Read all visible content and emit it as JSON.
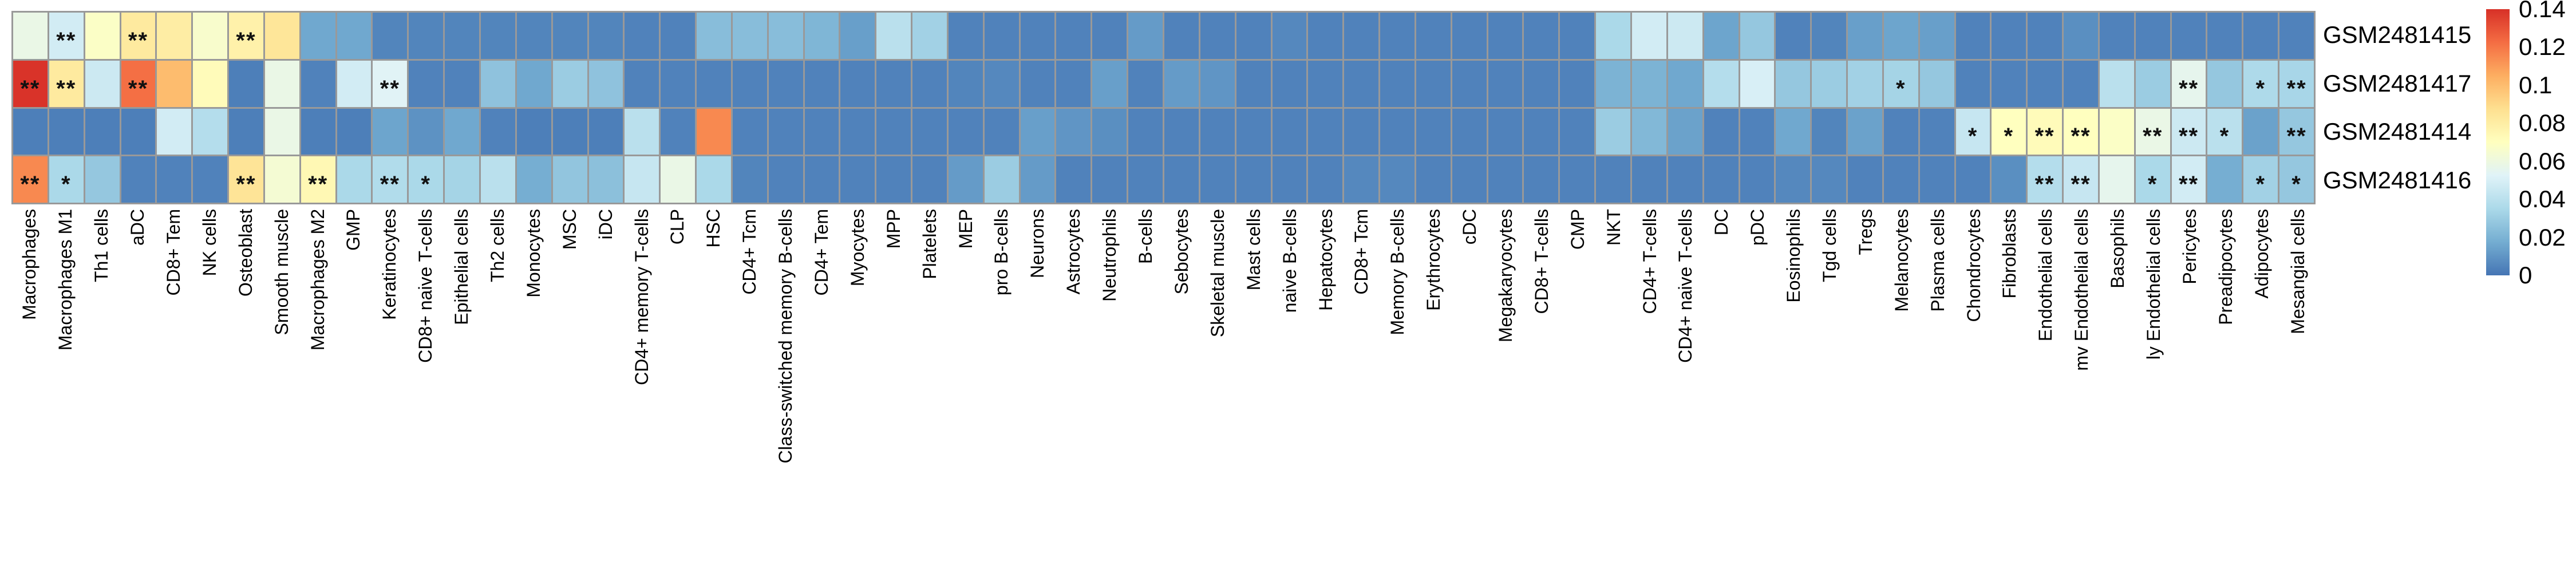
{
  "chart_data": {
    "type": "heatmap",
    "title": "",
    "legend_position": "right",
    "grid": true,
    "grid_color": "#999999",
    "value_range": [
      0,
      0.14
    ],
    "palette_low_to_high": [
      "#4575b4",
      "#74add1",
      "#abd9e9",
      "#e0f3f8",
      "#ffffbf",
      "#fee090",
      "#fdae61",
      "#f46d43",
      "#d73027"
    ],
    "rows": [
      "GSM2481415",
      "GSM2481417",
      "GSM2481414",
      "GSM2481416"
    ],
    "columns": [
      "Macrophages",
      "Macrophages M1",
      "Th1 cells",
      "aDC",
      "CD8+ Tem",
      "NK cells",
      "Osteoblast",
      "Smooth muscle",
      "Macrophages M2",
      "GMP",
      "Keratinocytes",
      "CD8+ naive T-cells",
      "Epithelial cells",
      "Th2 cells",
      "Monocytes",
      "MSC",
      "iDC",
      "CD4+ memory T-cells",
      "CLP",
      "HSC",
      "CD4+ Tcm",
      "Class-switched memory B-cells",
      "CD4+ Tem",
      "Myocytes",
      "MPP",
      "Platelets",
      "MEP",
      "pro B-cells",
      "Neurons",
      "Astrocytes",
      "Neutrophils",
      "B-cells",
      "Sebocytes",
      "Skeletal muscle",
      "Mast cells",
      "naive B-cells",
      "Hepatocytes",
      "CD8+ Tcm",
      "Memory B-cells",
      "Erythrocytes",
      "cDC",
      "Megakaryocytes",
      "CD8+ T-cells",
      "CMP",
      "NKT",
      "CD4+ T-cells",
      "CD4+ naive T-cells",
      "DC",
      "pDC",
      "Eosinophils",
      "Tgd cells",
      "Tregs",
      "Melanocytes",
      "Plasma cells",
      "Chondrocytes",
      "Fibroblasts",
      "Endothelial cells",
      "mv Endothelial cells",
      "Basophils",
      "ly Endothelial cells",
      "Pericytes",
      "Preadipocytes",
      "Adipocytes",
      "Mesangial cells"
    ],
    "values": [
      [
        0.058,
        0.048,
        0.068,
        0.082,
        0.08,
        0.066,
        0.078,
        0.084,
        0.016,
        0.016,
        0.005,
        0.005,
        0.005,
        0.005,
        0.005,
        0.005,
        0.005,
        0.004,
        0.004,
        0.024,
        0.024,
        0.024,
        0.021,
        0.013,
        0.04,
        0.032,
        0.004,
        0.004,
        0.004,
        0.004,
        0.004,
        0.012,
        0.004,
        0.004,
        0.004,
        0.006,
        0.004,
        0.004,
        0.004,
        0.004,
        0.004,
        0.004,
        0.004,
        0.004,
        0.035,
        0.048,
        0.046,
        0.015,
        0.028,
        0.004,
        0.005,
        0.013,
        0.015,
        0.013,
        0.004,
        0.004,
        0.004,
        0.008,
        0.004,
        0.004,
        0.004,
        0.004,
        0.004,
        0.004
      ],
      [
        0.139,
        0.082,
        0.046,
        0.122,
        0.1,
        0.072,
        0.003,
        0.058,
        0.004,
        0.048,
        0.053,
        0.004,
        0.004,
        0.026,
        0.016,
        0.03,
        0.026,
        0.004,
        0.004,
        0.004,
        0.004,
        0.004,
        0.004,
        0.004,
        0.004,
        0.004,
        0.005,
        0.006,
        0.004,
        0.004,
        0.013,
        0.004,
        0.012,
        0.01,
        0.004,
        0.004,
        0.004,
        0.004,
        0.004,
        0.004,
        0.004,
        0.004,
        0.004,
        0.004,
        0.02,
        0.02,
        0.016,
        0.038,
        0.05,
        0.028,
        0.03,
        0.032,
        0.033,
        0.028,
        0.004,
        0.004,
        0.004,
        0.004,
        0.04,
        0.03,
        0.056,
        0.028,
        0.036,
        0.034
      ],
      [
        0.003,
        0.003,
        0.003,
        0.003,
        0.048,
        0.038,
        0.003,
        0.058,
        0.003,
        0.003,
        0.015,
        0.009,
        0.016,
        0.004,
        0.003,
        0.003,
        0.003,
        0.04,
        0.004,
        0.115,
        0.004,
        0.004,
        0.004,
        0.004,
        0.004,
        0.004,
        0.004,
        0.004,
        0.013,
        0.01,
        0.008,
        0.004,
        0.004,
        0.004,
        0.004,
        0.004,
        0.004,
        0.004,
        0.004,
        0.004,
        0.004,
        0.004,
        0.004,
        0.004,
        0.03,
        0.022,
        0.014,
        0.004,
        0.004,
        0.016,
        0.005,
        0.014,
        0.004,
        0.004,
        0.044,
        0.07,
        0.072,
        0.07,
        0.068,
        0.058,
        0.046,
        0.04,
        0.014,
        0.028
      ],
      [
        0.115,
        0.035,
        0.028,
        0.004,
        0.004,
        0.004,
        0.085,
        0.064,
        0.074,
        0.035,
        0.037,
        0.035,
        0.033,
        0.04,
        0.018,
        0.027,
        0.025,
        0.044,
        0.058,
        0.035,
        0.005,
        0.004,
        0.004,
        0.004,
        0.004,
        0.004,
        0.012,
        0.03,
        0.012,
        0.004,
        0.004,
        0.004,
        0.004,
        0.004,
        0.004,
        0.004,
        0.004,
        0.006,
        0.006,
        0.004,
        0.004,
        0.004,
        0.004,
        0.004,
        0.004,
        0.004,
        0.004,
        0.004,
        0.004,
        0.006,
        0.006,
        0.004,
        0.004,
        0.004,
        0.004,
        0.008,
        0.038,
        0.044,
        0.056,
        0.035,
        0.048,
        0.018,
        0.032,
        0.028
      ]
    ],
    "significance": [
      [
        "",
        "**",
        "",
        "**",
        "",
        "",
        "**",
        "",
        "",
        "",
        "",
        "",
        "",
        "",
        "",
        "",
        "",
        "",
        "",
        "",
        "",
        "",
        "",
        "",
        "",
        "",
        "",
        "",
        "",
        "",
        "",
        "",
        "",
        "",
        "",
        "",
        "",
        "",
        "",
        "",
        "",
        "",
        "",
        "",
        "",
        "",
        "",
        "",
        "",
        "",
        "",
        "",
        "",
        "",
        "",
        "",
        "",
        "",
        "",
        "",
        "",
        "",
        "",
        ""
      ],
      [
        "**",
        "**",
        "",
        "**",
        "",
        "",
        "",
        "",
        "",
        "",
        "**",
        "",
        "",
        "",
        "",
        "",
        "",
        "",
        "",
        "",
        "",
        "",
        "",
        "",
        "",
        "",
        "",
        "",
        "",
        "",
        "",
        "",
        "",
        "",
        "",
        "",
        "",
        "",
        "",
        "",
        "",
        "",
        "",
        "",
        "",
        "",
        "",
        "",
        "",
        "",
        "",
        "",
        "*",
        "",
        "",
        "",
        "",
        "",
        "",
        "",
        "**",
        "",
        "*",
        "**"
      ],
      [
        "",
        "",
        "",
        "",
        "",
        "",
        "",
        "",
        "",
        "",
        "",
        "",
        "",
        "",
        "",
        "",
        "",
        "",
        "",
        "",
        "",
        "",
        "",
        "",
        "",
        "",
        "",
        "",
        "",
        "",
        "",
        "",
        "",
        "",
        "",
        "",
        "",
        "",
        "",
        "",
        "",
        "",
        "",
        "",
        "",
        "",
        "",
        "",
        "",
        "",
        "",
        "",
        "",
        "",
        "*",
        "*",
        "**",
        "**",
        "",
        "**",
        "**",
        "*",
        "",
        "**"
      ],
      [
        "**",
        "*",
        "",
        "",
        "",
        "",
        "**",
        "",
        "**",
        "",
        "**",
        "*",
        "",
        "",
        "",
        "",
        "",
        "",
        "",
        "",
        "",
        "",
        "",
        "",
        "",
        "",
        "",
        "",
        "",
        "",
        "",
        "",
        "",
        "",
        "",
        "",
        "",
        "",
        "",
        "",
        "",
        "",
        "",
        "",
        "",
        "",
        "",
        "",
        "",
        "",
        "",
        "",
        "",
        "",
        "",
        "",
        "**",
        "**",
        "",
        "*",
        "**",
        "",
        "*",
        "*"
      ]
    ],
    "colorbar": {
      "ticks": [
        {
          "label": "0.14",
          "value": 0.14
        },
        {
          "label": "0.12",
          "value": 0.12
        },
        {
          "label": "0.1",
          "value": 0.1
        },
        {
          "label": "0.08",
          "value": 0.08
        },
        {
          "label": "0.06",
          "value": 0.06
        },
        {
          "label": "0.04",
          "value": 0.04
        },
        {
          "label": "0.02",
          "value": 0.02
        },
        {
          "label": "0",
          "value": 0
        }
      ]
    }
  }
}
